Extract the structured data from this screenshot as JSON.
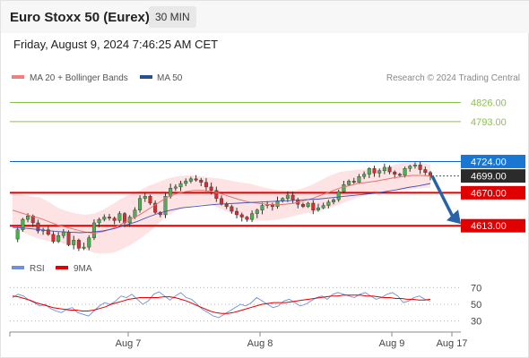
{
  "header": {
    "title": "Euro Stoxx 50 (Eurex)",
    "timeframe": "30 MIN",
    "datetime": "Friday, August 9, 2024 7:46:25 AM CET"
  },
  "legend": {
    "ma20_label": "MA 20 + Bollinger Bands",
    "ma50_label": "MA 50",
    "credit": "Research © 2024 Trading Central",
    "rsi_label": "RSI",
    "ma9_label": "9MA"
  },
  "colors": {
    "up_candle": "#4caf50",
    "down_candle": "#d32f2f",
    "bollinger_fill": "#fde3e3",
    "ma20": "#e57373",
    "ma50": "#3f51b5",
    "resistance_green": "#8bc34a",
    "resistance_blue": "#1565c0",
    "support_red": "#e00000",
    "arrow": "#2a62a8",
    "rsi": "#6f8fd8",
    "rsi_ma": "#e00000"
  },
  "chart_data": {
    "type": "candlestick",
    "y_range": [
      4570,
      4850
    ],
    "x_ticks": [
      "Aug 7",
      "Aug 8",
      "Aug 9",
      "Aug 17"
    ],
    "levels": [
      {
        "value": 4826.0,
        "label": "4826.00",
        "style": "resistance"
      },
      {
        "value": 4793.0,
        "label": "4793.00",
        "style": "resistance"
      },
      {
        "value": 4724.0,
        "label": "4724.00",
        "style": "pivot"
      },
      {
        "value": 4699.0,
        "label": "4699.00",
        "style": "last_price"
      },
      {
        "value": 4670.0,
        "label": "4670.00",
        "style": "support"
      },
      {
        "value": 4613.0,
        "label": "4613.00",
        "style": "support"
      }
    ],
    "close_path": [
      4590,
      4606,
      4624,
      4630,
      4618,
      4604,
      4606,
      4598,
      4586,
      4596,
      4602,
      4580,
      4588,
      4574,
      4576,
      4592,
      4618,
      4624,
      4628,
      4626,
      4622,
      4634,
      4618,
      4628,
      4640,
      4660,
      4664,
      4652,
      4636,
      4632,
      4664,
      4678,
      4680,
      4686,
      4690,
      4694,
      4692,
      4688,
      4680,
      4674,
      4660,
      4650,
      4646,
      4638,
      4632,
      4628,
      4624,
      4634,
      4640,
      4648,
      4650,
      4646,
      4656,
      4660,
      4666,
      4658,
      4650,
      4646,
      4652,
      4640,
      4644,
      4648,
      4654,
      4658,
      4672,
      4684,
      4690,
      4688,
      4698,
      4702,
      4712,
      4704,
      4708,
      4714,
      4706,
      4702,
      4700,
      4712,
      4716,
      4718,
      4710,
      4705,
      4699
    ],
    "ma20": [
      4640,
      4635,
      4630,
      4626,
      4620,
      4614,
      4610,
      4606,
      4602,
      4600,
      4603,
      4608,
      4616,
      4624,
      4632,
      4642,
      4652,
      4662,
      4668,
      4672,
      4674,
      4674,
      4672,
      4668,
      4663,
      4658,
      4654,
      4652,
      4650,
      4649,
      4650,
      4652,
      4656,
      4660,
      4666,
      4672,
      4678,
      4682,
      4686,
      4688,
      4690,
      4693,
      4696,
      4698,
      4700,
      4700,
      4699
    ],
    "ma50": [
      4610,
      4609,
      4607,
      4605,
      4603,
      4602,
      4601,
      4602,
      4604,
      4608,
      4614,
      4620,
      4628,
      4635,
      4640,
      4644,
      4646,
      4648,
      4650,
      4651,
      4652,
      4653,
      4654,
      4655,
      4656,
      4657,
      4658,
      4659,
      4661,
      4663,
      4665,
      4667,
      4669,
      4672,
      4675,
      4679,
      4682,
      4686
    ],
    "bollinger_halfwidth": [
      30,
      32,
      34,
      36,
      34,
      30,
      28,
      28,
      30,
      34,
      38,
      42,
      44,
      44,
      42,
      40,
      36,
      32,
      30,
      28,
      26,
      24,
      24,
      26,
      28,
      30,
      32,
      30,
      28,
      26,
      24,
      22,
      22,
      24,
      26,
      28,
      28,
      26,
      24,
      22,
      20,
      20,
      22,
      24,
      24,
      22,
      20
    ],
    "projection": {
      "from": 4699,
      "to": 4613,
      "direction": "down"
    }
  },
  "rsi_data": {
    "y_range": [
      20,
      80
    ],
    "ticks": [
      70,
      50,
      30
    ],
    "rsi": [
      58,
      62,
      60,
      55,
      52,
      48,
      50,
      45,
      42,
      40,
      44,
      46,
      40,
      38,
      36,
      42,
      48,
      52,
      50,
      54,
      60,
      58,
      62,
      56,
      50,
      54,
      62,
      65,
      60,
      55,
      60,
      64,
      58,
      56,
      50,
      44,
      40,
      36,
      34,
      38,
      42,
      46,
      50,
      48,
      52,
      58,
      54,
      50,
      46,
      48,
      54,
      56,
      52,
      48,
      50,
      54,
      58,
      60,
      56,
      62,
      64,
      62,
      60,
      58,
      62,
      64,
      60,
      56,
      58,
      62,
      64,
      60,
      52,
      54,
      58,
      60,
      56,
      54
    ],
    "rsi_ma": [
      60,
      59,
      57,
      55,
      52,
      50,
      48,
      46,
      45,
      44,
      43,
      43,
      42,
      42,
      43,
      45,
      47,
      50,
      52,
      54,
      56,
      57,
      58,
      58,
      58,
      58,
      59,
      59,
      58,
      56,
      54,
      51,
      48,
      45,
      42,
      40,
      39,
      39,
      40,
      42,
      44,
      46,
      48,
      50,
      51,
      52,
      52,
      52,
      53,
      54,
      55,
      56,
      57,
      58,
      59,
      60,
      60,
      61,
      61,
      61,
      61,
      60,
      60,
      59,
      58,
      58,
      57,
      57,
      56,
      56,
      55,
      55,
      56
    ]
  }
}
